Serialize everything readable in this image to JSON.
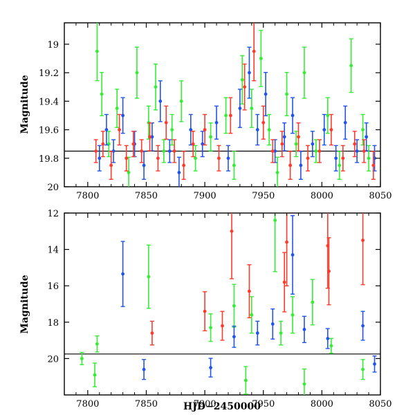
{
  "colors": {
    "green": "#33ee33",
    "blue": "#1f55ee",
    "red": "#ff3a2a",
    "frame": "#000000"
  },
  "chart_data": [
    {
      "type": "scatter",
      "title": "",
      "xlabel": "",
      "ylabel": "Magnitude",
      "xlim": [
        7780,
        8050
      ],
      "ylim": [
        20.0,
        18.85
      ],
      "y_inverted": true,
      "x_ticks": [
        7800,
        7850,
        7900,
        7950,
        8000,
        8050
      ],
      "y_ticks": [
        19,
        19.2,
        19.4,
        19.6,
        19.8,
        20
      ],
      "y_tick_labels": [
        "19",
        "19.2",
        "19.4",
        "19.6",
        "19.8",
        "20"
      ],
      "x_tick_labels": [
        "7800",
        "7850",
        "7900",
        "7950",
        "8000",
        "8050"
      ],
      "reference_line": 19.75,
      "grid": false,
      "series": [
        {
          "color": "green",
          "x": [
            7808,
            7812,
            7818,
            7825,
            7835,
            7842,
            7852,
            7858,
            7865,
            7872,
            7880,
            7892,
            7905,
            7918,
            7925,
            7932,
            7940,
            7948,
            7955,
            7962,
            7970,
            7978,
            7985,
            7995,
            8005,
            8015,
            8025,
            8035,
            8040
          ],
          "y": [
            19.05,
            19.35,
            19.7,
            19.45,
            19.9,
            19.2,
            19.55,
            19.3,
            19.75,
            19.6,
            19.4,
            19.8,
            19.65,
            19.5,
            19.85,
            19.25,
            19.45,
            19.1,
            19.6,
            19.9,
            19.35,
            19.7,
            19.2,
            19.75,
            19.5,
            19.85,
            19.15,
            19.6,
            19.8
          ]
        },
        {
          "color": "blue",
          "x": [
            7810,
            7816,
            7822,
            7830,
            7840,
            7848,
            7855,
            7862,
            7870,
            7878,
            7888,
            7898,
            7910,
            7920,
            7930,
            7938,
            7945,
            7952,
            7960,
            7968,
            7975,
            7982,
            7992,
            8002,
            8012,
            8020,
            8030,
            8038,
            8045
          ],
          "y": [
            19.8,
            19.6,
            19.75,
            19.5,
            19.7,
            19.85,
            19.65,
            19.4,
            19.75,
            19.9,
            19.6,
            19.7,
            19.55,
            19.8,
            19.45,
            19.2,
            19.6,
            19.35,
            19.75,
            19.65,
            19.5,
            19.85,
            19.7,
            19.6,
            19.8,
            19.55,
            19.75,
            19.65,
            19.8
          ]
        },
        {
          "color": "red",
          "x": [
            7807,
            7813,
            7820,
            7827,
            7833,
            7839,
            7846,
            7853,
            7860,
            7867,
            7874,
            7882,
            7890,
            7900,
            7912,
            7922,
            7934,
            7942,
            7950,
            7958,
            7966,
            7973,
            7980,
            7988,
            7998,
            8008,
            8018,
            8028,
            8036,
            8044
          ],
          "y": [
            19.75,
            19.7,
            19.85,
            19.6,
            19.8,
            19.7,
            19.75,
            19.65,
            19.8,
            19.55,
            19.75,
            19.85,
            19.7,
            19.6,
            19.8,
            19.5,
            19.3,
            19.05,
            19.55,
            19.75,
            19.7,
            19.85,
            19.65,
            19.8,
            19.75,
            19.6,
            19.8,
            19.7,
            19.75,
            19.85
          ]
        }
      ]
    },
    {
      "type": "scatter",
      "title": "",
      "xlabel": "HJD−2450000",
      "ylabel": "Magnitude",
      "xlim": [
        7780,
        8050
      ],
      "ylim": [
        22,
        12
      ],
      "y_inverted": true,
      "x_ticks": [
        7800,
        7850,
        7900,
        7950,
        8000,
        8050
      ],
      "y_ticks": [
        12,
        14,
        16,
        18,
        20
      ],
      "y_tick_labels": [
        "12",
        "14",
        "16",
        "18",
        "20"
      ],
      "x_tick_labels": [
        "7800",
        "7850",
        "7900",
        "7950",
        "8000",
        "8050"
      ],
      "reference_line": 19.75,
      "grid": false,
      "series": [
        {
          "color": "green",
          "x": [
            7795,
            7806,
            7808,
            7852,
            7905,
            7925,
            7935,
            7940,
            7960,
            7965,
            7975,
            7985,
            7992,
            8008,
            8035
          ],
          "y": [
            20.0,
            20.9,
            19.2,
            15.5,
            18.3,
            17.1,
            21.2,
            17.6,
            12.4,
            18.6,
            17.6,
            21.4,
            16.9,
            19.3,
            20.6
          ]
        },
        {
          "color": "blue",
          "x": [
            7830,
            7848,
            7905,
            7925,
            7945,
            7958,
            7975,
            7985,
            8005,
            8035,
            8045
          ],
          "y": [
            15.35,
            20.6,
            20.5,
            18.8,
            18.6,
            18.1,
            14.3,
            18.4,
            18.9,
            18.2,
            20.3
          ]
        },
        {
          "color": "red",
          "x": [
            7855,
            7900,
            7915,
            7923,
            7938,
            7968,
            7970,
            8005,
            8006,
            8035
          ],
          "y": [
            18.6,
            17.4,
            18.2,
            13.0,
            16.3,
            15.8,
            13.6,
            13.8,
            15.2,
            13.5
          ]
        }
      ]
    }
  ]
}
